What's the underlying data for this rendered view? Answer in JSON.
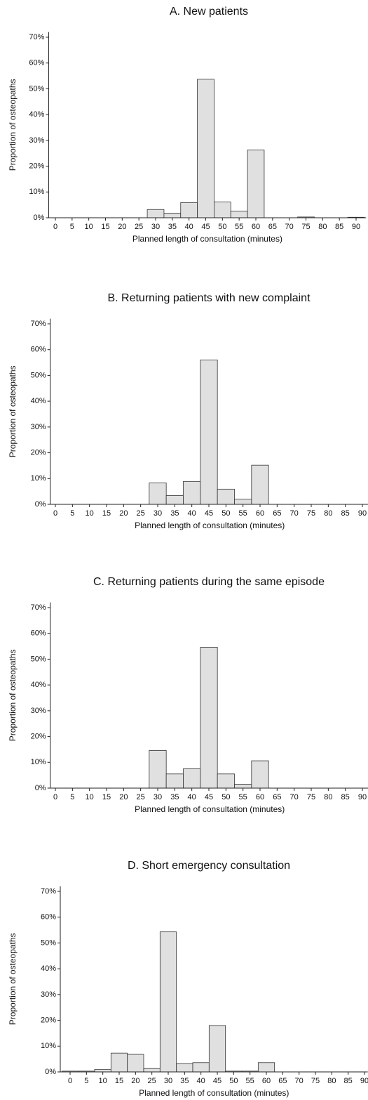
{
  "chart_data": [
    {
      "type": "histogram",
      "title": "A. New patients",
      "xlabel": "Planned length of consultation (minutes)",
      "ylabel": "Proportion of osteopaths",
      "color": "#e0e0e0",
      "bins": [
        27.5,
        32.5,
        37.5,
        42.5,
        47.5,
        52.5,
        57.5,
        62.5,
        67.5,
        72.5,
        77.5,
        82.5,
        87.5,
        92.5
      ],
      "values": [
        3.2,
        1.8,
        5.9,
        53.7,
        6.1,
        2.6,
        26.3,
        0,
        0,
        0.3,
        0,
        0,
        0.2
      ],
      "xlim": [
        -2,
        93
      ],
      "ylim": [
        0,
        72
      ],
      "xticks": [
        0,
        5,
        10,
        15,
        20,
        25,
        30,
        35,
        40,
        45,
        50,
        55,
        60,
        65,
        70,
        75,
        80,
        85,
        90
      ],
      "yticks": [
        {
          "value": 0,
          "label": "0%"
        },
        {
          "value": 10,
          "label": "10%"
        },
        {
          "value": 20,
          "label": "20%"
        },
        {
          "value": 30,
          "label": "30%"
        },
        {
          "value": 40,
          "label": "40%"
        },
        {
          "value": 50,
          "label": "50%"
        },
        {
          "value": 60,
          "label": "60%"
        },
        {
          "value": 70,
          "label": "70%"
        }
      ]
    },
    {
      "type": "histogram",
      "title": "B. Returning patients with new complaint",
      "xlabel": "Planned length of consultation (minutes)",
      "ylabel": "Proportion of osteopaths",
      "color": "#e0e0e0",
      "bins": [
        27.5,
        32.5,
        37.5,
        42.5,
        47.5,
        52.5,
        57.5,
        62.5
      ],
      "values": [
        8.3,
        3.4,
        8.9,
        56,
        5.9,
        2.0,
        15.2
      ],
      "xlim": [
        -1.5,
        92
      ],
      "ylim": [
        0,
        72
      ],
      "xticks": [
        0,
        5,
        10,
        15,
        20,
        25,
        30,
        35,
        40,
        45,
        50,
        55,
        60,
        65,
        70,
        75,
        80,
        85,
        90
      ],
      "yticks": [
        {
          "value": 0,
          "label": "0%"
        },
        {
          "value": 10,
          "label": "10%"
        },
        {
          "value": 20,
          "label": "20%"
        },
        {
          "value": 30,
          "label": "30%"
        },
        {
          "value": 40,
          "label": "40%"
        },
        {
          "value": 50,
          "label": "50%"
        },
        {
          "value": 60,
          "label": "60%"
        },
        {
          "value": 70,
          "label": "70%"
        }
      ]
    },
    {
      "type": "histogram",
      "title": "C. Returning patients during the same episode",
      "xlabel": "Planned length of consultation (minutes)",
      "ylabel": "Proportion of osteopaths",
      "color": "#e0e0e0",
      "bins": [
        27.5,
        32.5,
        37.5,
        42.5,
        47.5,
        52.5,
        57.5,
        62.5
      ],
      "values": [
        14.6,
        5.5,
        7.5,
        54.6,
        5.5,
        1.5,
        10.6
      ],
      "xlim": [
        -1.5,
        92
      ],
      "ylim": [
        0,
        72
      ],
      "xticks": [
        0,
        5,
        10,
        15,
        20,
        25,
        30,
        35,
        40,
        45,
        50,
        55,
        60,
        65,
        70,
        75,
        80,
        85,
        90
      ],
      "yticks": [
        {
          "value": 0,
          "label": "0%"
        },
        {
          "value": 10,
          "label": "10%"
        },
        {
          "value": 20,
          "label": "20%"
        },
        {
          "value": 30,
          "label": "30%"
        },
        {
          "value": 40,
          "label": "40%"
        },
        {
          "value": 50,
          "label": "50%"
        },
        {
          "value": 60,
          "label": "60%"
        },
        {
          "value": 70,
          "label": "70%"
        }
      ]
    },
    {
      "type": "histogram",
      "title": "D. Short emergency consultation",
      "xlabel": "Planned length of consultation (minutes)",
      "ylabel": "Proportion of osteopaths",
      "color": "#e0e0e0",
      "bins": [
        -2.5,
        2.5,
        7.5,
        12.5,
        17.5,
        22.5,
        27.5,
        32.5,
        37.5,
        42.5,
        47.5,
        52.5,
        57.5,
        62.5
      ],
      "values": [
        0.3,
        0.3,
        1.0,
        7.3,
        6.8,
        1.3,
        54.3,
        3.2,
        3.6,
        18,
        0.3,
        0.3,
        3.6
      ],
      "xlim": [
        -3,
        91
      ],
      "ylim": [
        0,
        72
      ],
      "xticks": [
        0,
        5,
        10,
        15,
        20,
        25,
        30,
        35,
        40,
        45,
        50,
        55,
        60,
        65,
        70,
        75,
        80,
        85,
        90
      ],
      "yticks": [
        {
          "value": 0,
          "label": "0%"
        },
        {
          "value": 10,
          "label": "10%"
        },
        {
          "value": 20,
          "label": "20%"
        },
        {
          "value": 30,
          "label": "30%"
        },
        {
          "value": 40,
          "label": "40%"
        },
        {
          "value": 50,
          "label": "50%"
        },
        {
          "value": 60,
          "label": "60%"
        },
        {
          "value": 70,
          "label": "70%"
        }
      ]
    }
  ]
}
